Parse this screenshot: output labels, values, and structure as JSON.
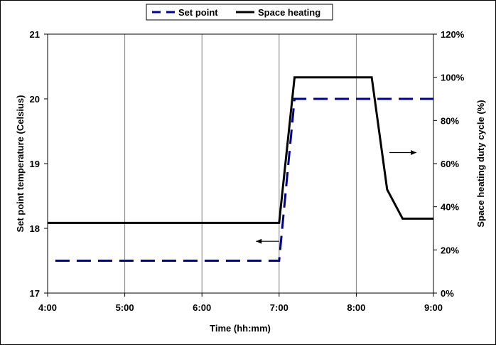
{
  "chart_data": {
    "type": "line",
    "xlabel": "Time (hh:mm)",
    "ylabel_left": "Set point temperature (Celsius)",
    "ylabel_right": "Space heating duty cycle (%)",
    "x_ticks": [
      "4:00",
      "5:00",
      "6:00",
      "7:00",
      "8:00",
      "9:00"
    ],
    "xlim_hours": [
      4,
      9
    ],
    "y_left_ticks": [
      "17",
      "18",
      "19",
      "20",
      "21"
    ],
    "y_left_lim": [
      17,
      21
    ],
    "y_right_ticks": [
      "0%",
      "20%",
      "40%",
      "60%",
      "80%",
      "100%",
      "120%"
    ],
    "y_right_lim": [
      0,
      120
    ],
    "grid": "vertical",
    "legend_position": "top",
    "series": [
      {
        "name": "Set point",
        "axis": "left",
        "style": "dashed",
        "color": "#00008B",
        "x": [
          4.1,
          7.0,
          7.2,
          9.0
        ],
        "y": [
          17.5,
          17.5,
          20.0,
          20.0
        ]
      },
      {
        "name": "Space heating",
        "axis": "right",
        "style": "solid",
        "color": "#000000",
        "x": [
          4.0,
          7.0,
          7.2,
          8.2,
          8.4,
          8.6,
          9.0
        ],
        "y": [
          32.5,
          32.5,
          100,
          100,
          48,
          34.5,
          34.5
        ]
      }
    ],
    "annotations": [
      {
        "label": "arrow-left",
        "direction": "left",
        "x": [
          7.0,
          6.7
        ],
        "y_left": 17.8
      },
      {
        "label": "arrow-right",
        "direction": "right",
        "x": [
          8.43,
          8.78
        ],
        "y_left": 19.17
      }
    ]
  }
}
